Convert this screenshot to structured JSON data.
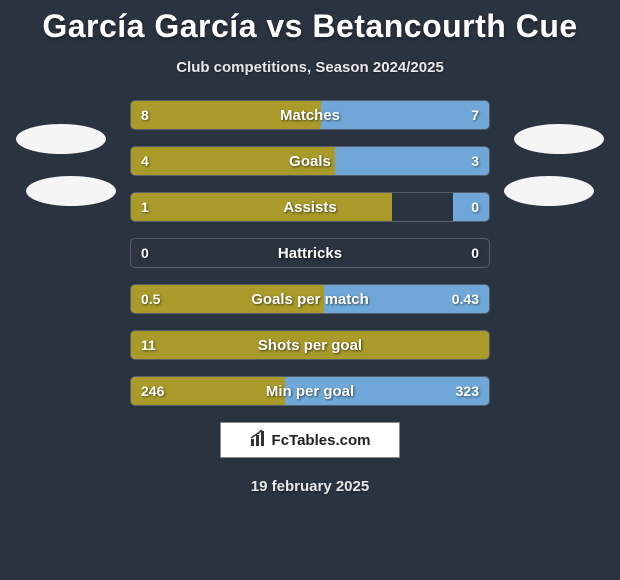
{
  "title": "García García vs Betancourth Cue",
  "subtitle": "Club competitions, Season 2024/2025",
  "date": "19 february 2025",
  "logo_text": "FcTables.com",
  "colors": {
    "background": "#2a3440",
    "left_bar": "#a99a2a",
    "right_bar": "#6fa8d8",
    "bar_border": "#555d66",
    "text": "#ffffff"
  },
  "bars": [
    {
      "label": "Matches",
      "left_val": "8",
      "right_val": "7",
      "left_pct": 53,
      "right_pct": 47
    },
    {
      "label": "Goals",
      "left_val": "4",
      "right_val": "3",
      "left_pct": 57,
      "right_pct": 43
    },
    {
      "label": "Assists",
      "left_val": "1",
      "right_val": "0",
      "left_pct": 73,
      "right_pct": 10
    },
    {
      "label": "Hattricks",
      "left_val": "0",
      "right_val": "0",
      "left_pct": 0,
      "right_pct": 0
    },
    {
      "label": "Goals per match",
      "left_val": "0.5",
      "right_val": "0.43",
      "left_pct": 54,
      "right_pct": 46
    },
    {
      "label": "Shots per goal",
      "left_val": "11",
      "right_val": "",
      "left_pct": 100,
      "right_pct": 0
    },
    {
      "label": "Min per goal",
      "left_val": "246",
      "right_val": "323",
      "left_pct": 43,
      "right_pct": 57
    }
  ]
}
